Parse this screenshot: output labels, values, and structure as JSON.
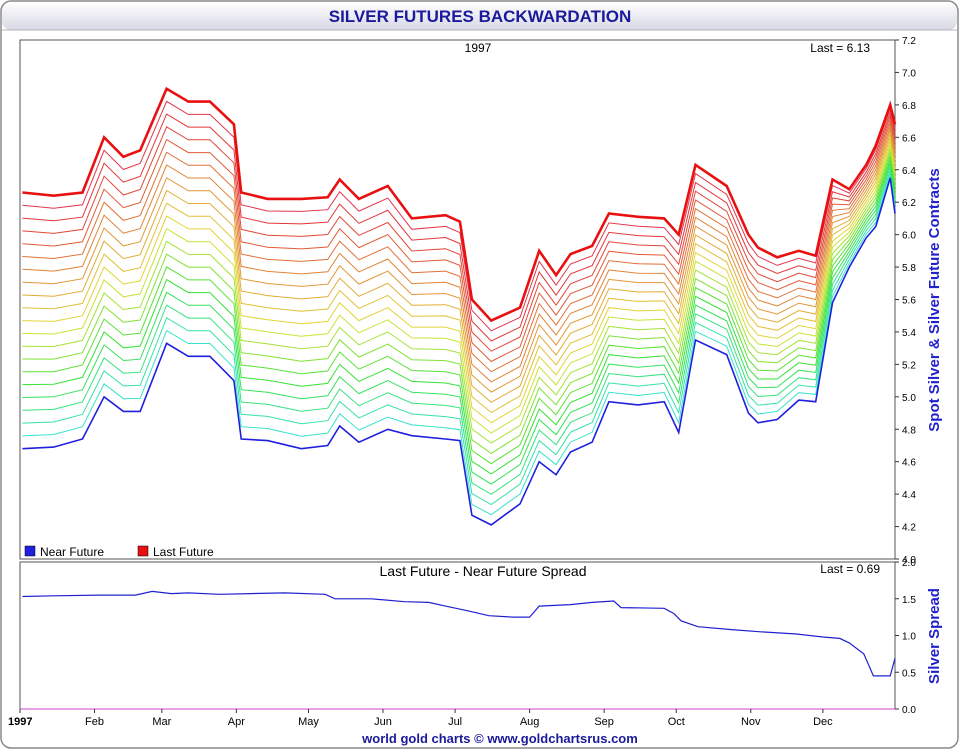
{
  "title": "SILVER FUTURES BACKWARDATION",
  "footer": "world gold charts © www.goldchartsrus.com",
  "colors": {
    "near": "#1f1fe0",
    "last": "#e81010",
    "spread": "#2020d0",
    "title": "#1a1a9a",
    "axis_label": "#2222cc"
  },
  "chart_data": [
    {
      "type": "line",
      "title": "1997",
      "last_label": "Last = 6.13",
      "ylabel": "Spot Silver & Silver Future Contracts",
      "ylim": [
        4.0,
        7.2
      ],
      "yticks": [
        4.0,
        4.2,
        4.4,
        4.6,
        4.8,
        5.0,
        5.2,
        5.4,
        5.6,
        5.8,
        6.0,
        6.2,
        6.4,
        6.6,
        6.8,
        7.0,
        7.2
      ],
      "legend": [
        {
          "label": "Near Future",
          "color": "#1f1fe0"
        },
        {
          "label": "Last Future",
          "color": "#e81010"
        }
      ],
      "legend_position": "bottom-left",
      "x": [
        "Jan 2",
        "Jan 15",
        "Jan 27",
        "Feb 5",
        "Feb 13",
        "Feb 20",
        "Mar 3",
        "Mar 12",
        "Mar 21",
        "Mar 31",
        "Apr 3",
        "Apr 14",
        "Apr 28",
        "May 9",
        "May 14",
        "May 22",
        "Jun 3",
        "Jun 13",
        "Jun 27",
        "Jul 3",
        "Jul 8",
        "Jul 16",
        "Jul 28",
        "Aug 5",
        "Aug 12",
        "Aug 18",
        "Aug 27",
        "Sep 3",
        "Sep 15",
        "Sep 26",
        "Oct 2",
        "Oct 9",
        "Oct 22",
        "Oct 31",
        "Nov 4",
        "Nov 12",
        "Nov 21",
        "Nov 28",
        "Dec 5",
        "Dec 12",
        "Dec 19",
        "Dec 23",
        "Dec 29",
        "Dec 31"
      ],
      "series": [
        {
          "name": "Last Future",
          "values": [
            6.26,
            6.24,
            6.26,
            6.6,
            6.48,
            6.52,
            6.9,
            6.82,
            6.82,
            6.68,
            6.26,
            6.22,
            6.22,
            6.23,
            6.34,
            6.22,
            6.3,
            6.1,
            6.12,
            6.08,
            5.6,
            5.47,
            5.55,
            5.9,
            5.75,
            5.88,
            5.93,
            6.13,
            6.11,
            6.1,
            6.0,
            6.43,
            6.3,
            6.0,
            5.92,
            5.86,
            5.9,
            5.87,
            6.34,
            6.28,
            6.43,
            6.55,
            6.8,
            6.68
          ]
        },
        {
          "name": "Near Future",
          "values": [
            4.68,
            4.69,
            4.74,
            5.0,
            4.91,
            4.91,
            5.33,
            5.25,
            5.25,
            5.1,
            4.74,
            4.73,
            4.68,
            4.7,
            4.82,
            4.72,
            4.8,
            4.76,
            4.74,
            4.73,
            4.27,
            4.21,
            4.34,
            4.6,
            4.52,
            4.66,
            4.72,
            4.97,
            4.95,
            4.97,
            4.78,
            5.35,
            5.26,
            4.9,
            4.84,
            4.86,
            4.98,
            4.97,
            5.58,
            5.8,
            5.98,
            6.05,
            6.35,
            6.13
          ]
        }
      ],
      "intermediate_contracts": 19
    },
    {
      "type": "line",
      "title": "Last Future - Near Future Spread",
      "last_label": "Last = 0.69",
      "ylabel": "Silver Spread",
      "ylim": [
        0.0,
        2.0
      ],
      "yticks": [
        0.0,
        0.5,
        1.0,
        1.5,
        2.0
      ],
      "xlabel": "",
      "xticks": [
        "1997",
        "Feb",
        "Mar",
        "Apr",
        "May",
        "Jun",
        "Jul",
        "Aug",
        "Sep",
        "Oct",
        "Nov",
        "Dec"
      ],
      "x": [
        "Jan 2",
        "Jan 15",
        "Feb 3",
        "Feb 18",
        "Feb 25",
        "Mar 5",
        "Mar 12",
        "Mar 25",
        "Apr 7",
        "Apr 21",
        "May 8",
        "May 12",
        "May 27",
        "Jun 10",
        "Jun 20",
        "Jun 27",
        "Jul 7",
        "Jul 15",
        "Jul 25",
        "Aug 1",
        "Aug 5",
        "Aug 18",
        "Aug 27",
        "Sep 5",
        "Sep 8",
        "Sep 26",
        "Sep 30",
        "Oct 3",
        "Oct 10",
        "Oct 24",
        "Nov 5",
        "Nov 20",
        "Dec 1",
        "Dec 8",
        "Dec 12",
        "Dec 18",
        "Dec 22",
        "Dec 29",
        "Dec 31"
      ],
      "series": [
        {
          "name": "Last Future - Near Future Spread",
          "values": [
            1.53,
            1.54,
            1.55,
            1.55,
            1.6,
            1.57,
            1.58,
            1.56,
            1.57,
            1.58,
            1.56,
            1.5,
            1.5,
            1.46,
            1.45,
            1.4,
            1.33,
            1.27,
            1.25,
            1.25,
            1.4,
            1.42,
            1.45,
            1.47,
            1.38,
            1.37,
            1.3,
            1.2,
            1.12,
            1.08,
            1.05,
            1.02,
            0.98,
            0.96,
            0.9,
            0.75,
            0.45,
            0.45,
            0.69
          ]
        }
      ]
    }
  ]
}
